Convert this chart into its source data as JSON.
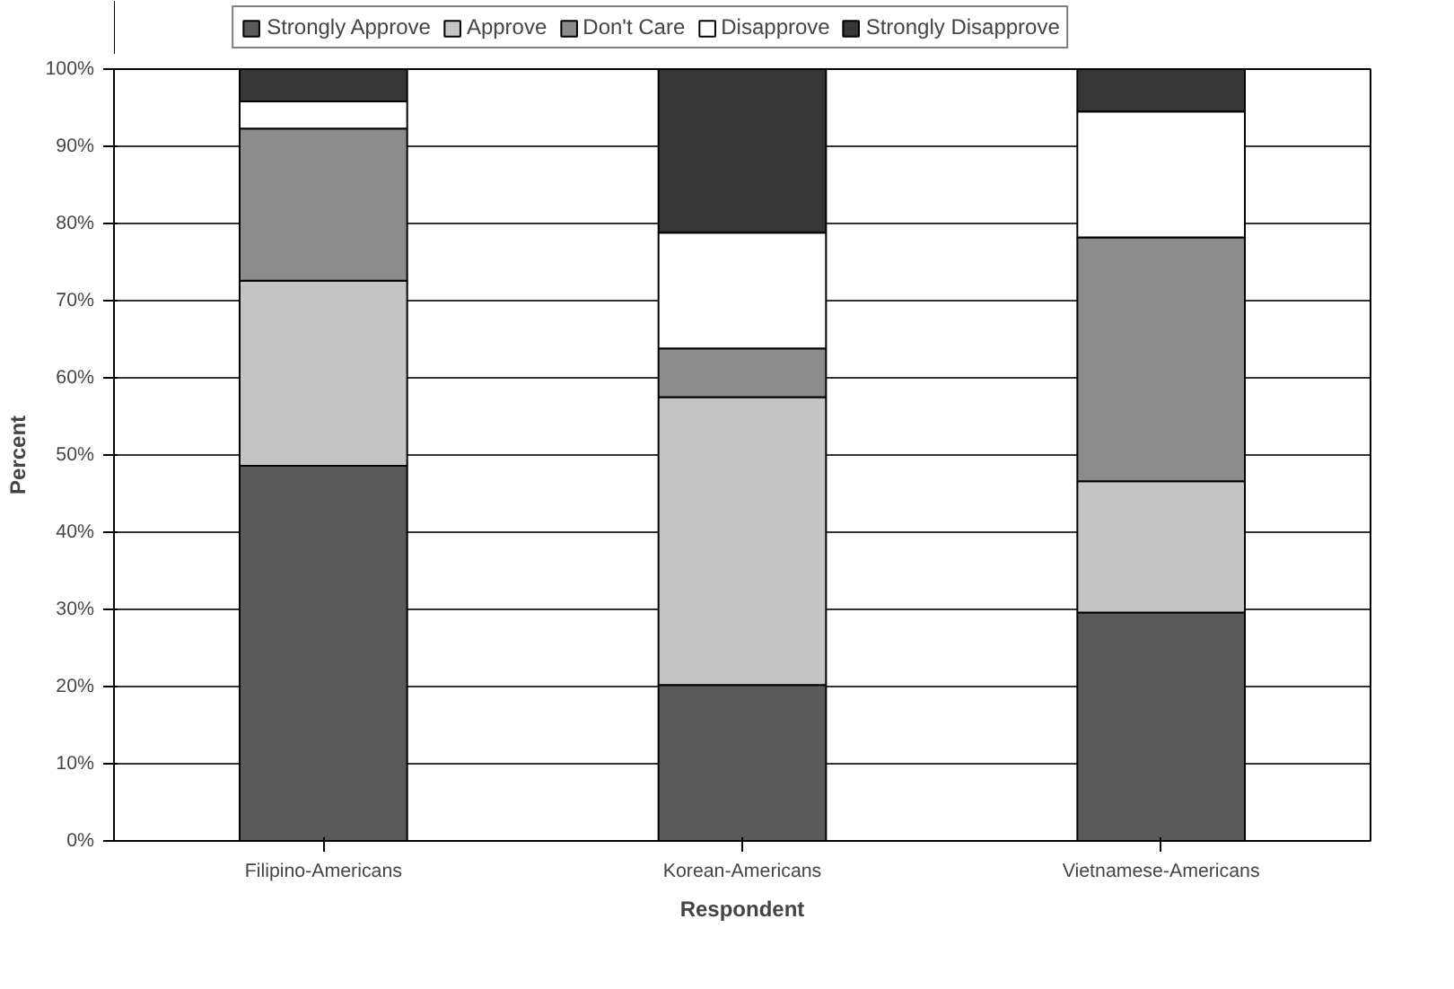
{
  "chart_data": {
    "type": "bar",
    "stacked": true,
    "xlabel": "Respondent",
    "ylabel": "Percent",
    "categories": [
      "Filipino-Americans",
      "Korean-Americans",
      "Vietnamese-Americans"
    ],
    "series": [
      {
        "name": "Strongly Approve",
        "color": "#5a5a5a",
        "values": [
          48.6,
          20.2,
          29.6
        ]
      },
      {
        "name": "Approve",
        "color": "#c4c4c4",
        "values": [
          24.0,
          37.3,
          17.0
        ]
      },
      {
        "name": "Don't Care",
        "color": "#8c8c8c",
        "values": [
          19.7,
          6.3,
          31.6
        ]
      },
      {
        "name": "Disapprove",
        "color": "#ffffff",
        "values": [
          3.5,
          15.0,
          16.3
        ]
      },
      {
        "name": "Strongly Disapprove",
        "color": "#363636",
        "values": [
          4.2,
          21.2,
          5.5
        ]
      }
    ],
    "ylim": [
      0,
      100
    ],
    "yticks": [
      {
        "value": 0,
        "label": "0%"
      },
      {
        "value": 10,
        "label": "10%"
      },
      {
        "value": 20,
        "label": "20%"
      },
      {
        "value": 30,
        "label": "30%"
      },
      {
        "value": 40,
        "label": "40%"
      },
      {
        "value": 50,
        "label": "50%"
      },
      {
        "value": 60,
        "label": "60%"
      },
      {
        "value": 70,
        "label": "70%"
      },
      {
        "value": 80,
        "label": "80%"
      },
      {
        "value": 90,
        "label": "90%"
      },
      {
        "value": 100,
        "label": "100%"
      }
    ],
    "grid": "y",
    "legend": "top"
  }
}
